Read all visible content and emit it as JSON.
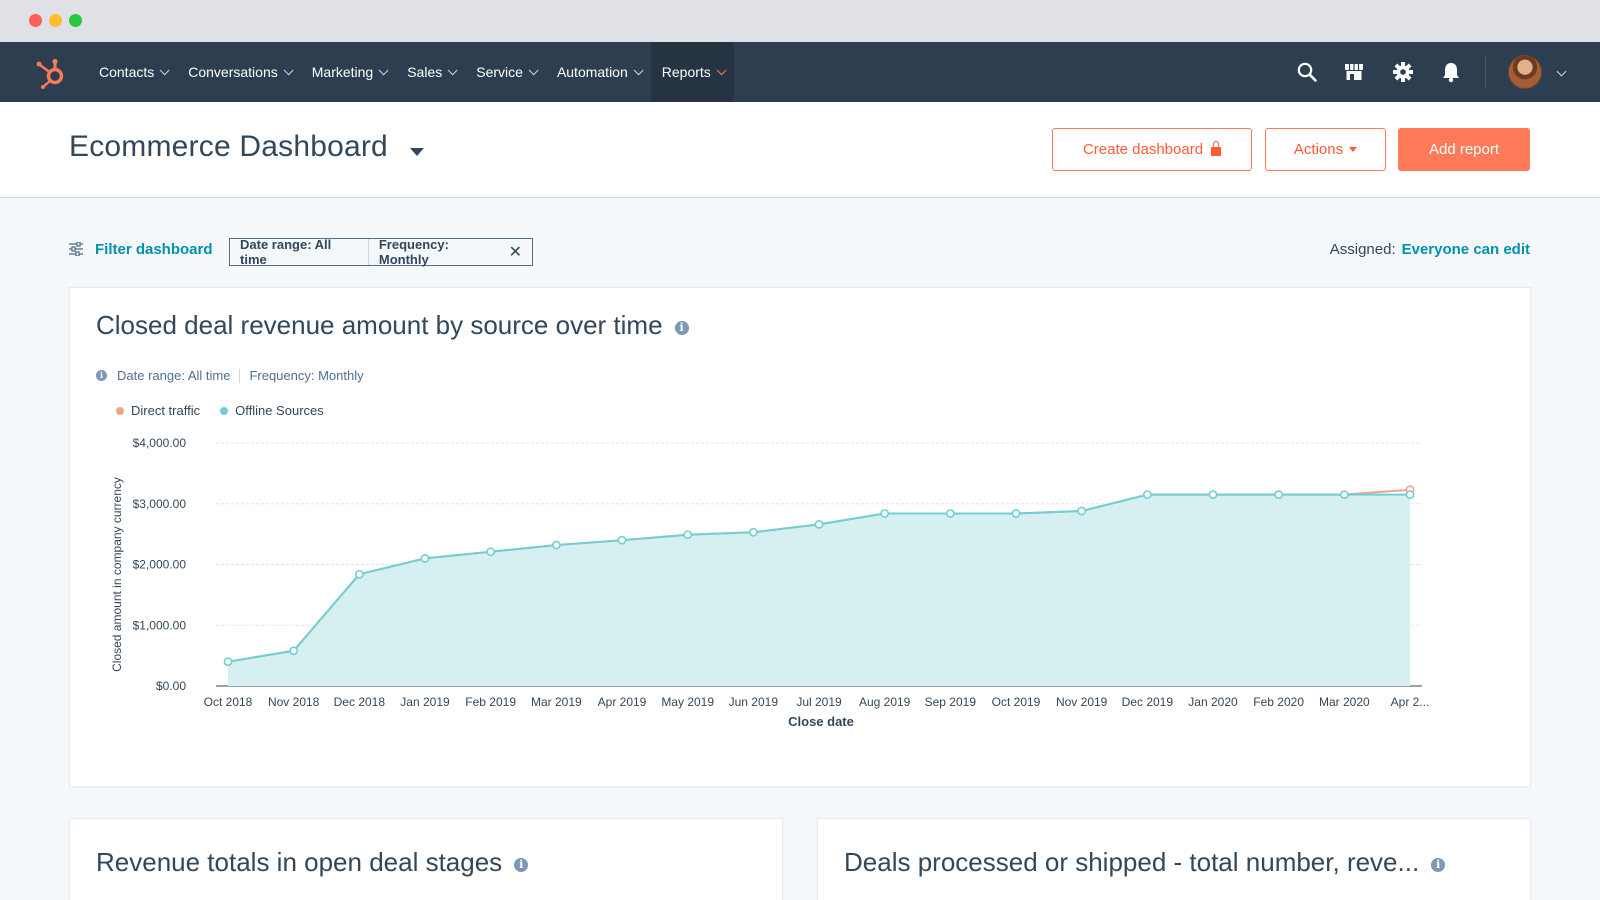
{
  "nav": {
    "items": [
      {
        "label": "Contacts",
        "name": "nav-contacts",
        "active": false
      },
      {
        "label": "Conversations",
        "name": "nav-conversations",
        "active": false
      },
      {
        "label": "Marketing",
        "name": "nav-marketing",
        "active": false
      },
      {
        "label": "Sales",
        "name": "nav-sales",
        "active": false
      },
      {
        "label": "Service",
        "name": "nav-service",
        "active": false
      },
      {
        "label": "Automation",
        "name": "nav-automation",
        "active": false
      },
      {
        "label": "Reports",
        "name": "nav-reports",
        "active": true
      }
    ],
    "icons": [
      "search-icon",
      "marketplace-icon",
      "settings-gear-icon",
      "notifications-bell-icon"
    ]
  },
  "header": {
    "title": "Ecommerce Dashboard",
    "create_label": "Create dashboard",
    "actions_label": "Actions",
    "add_label": "Add report"
  },
  "filters": {
    "link_label": "Filter dashboard",
    "chip_date": "Date range: All time",
    "chip_freq": "Frequency: Monthly",
    "chip_close": "✕",
    "assigned_label": "Assigned:",
    "assigned_value": "Everyone can edit"
  },
  "report": {
    "title": "Closed deal revenue amount by source over time",
    "date_range": "Date range: All time",
    "frequency": "Frequency: Monthly"
  },
  "colors": {
    "accent": "#ff7a59",
    "link": "#0091ae",
    "nav_bg": "#2d3e50",
    "direct_traffic": "#f2a28a",
    "offline_sources": "#6fcfd3",
    "area_fill": "#d6f0f2"
  },
  "chart_data": {
    "type": "area",
    "title": "",
    "xlabel": "Close date",
    "ylabel": "Closed amount in company currency",
    "legend": "top-left",
    "grid": true,
    "ylim": [
      0,
      4000
    ],
    "yticks": [
      "$0.00",
      "$1,000.00",
      "$2,000.00",
      "$3,000.00",
      "$4,000.00"
    ],
    "categories": [
      "Oct 2018",
      "Nov 2018",
      "Dec 2018",
      "Jan 2019",
      "Feb 2019",
      "Mar 2019",
      "Apr 2019",
      "May 2019",
      "Jun 2019",
      "Jul 2019",
      "Aug 2019",
      "Sep 2019",
      "Oct 2019",
      "Nov 2019",
      "Dec 2019",
      "Jan 2020",
      "Feb 2020",
      "Mar 2020",
      "Apr 2..."
    ],
    "series": [
      {
        "name": "Direct traffic",
        "values": [
          400,
          580,
          1840,
          2100,
          2210,
          2320,
          2400,
          2490,
          2530,
          2660,
          2840,
          2840,
          2840,
          2880,
          3150,
          3150,
          3150,
          3150,
          3230
        ]
      },
      {
        "name": "Offline Sources",
        "values": [
          400,
          580,
          1840,
          2100,
          2210,
          2320,
          2400,
          2490,
          2530,
          2660,
          2840,
          2840,
          2840,
          2880,
          3150,
          3150,
          3150,
          3150,
          3150
        ]
      }
    ]
  },
  "cards": {
    "bottom_left_title": "Revenue totals in open deal stages",
    "bottom_right_title": "Deals processed or shipped - total number, reve..."
  }
}
